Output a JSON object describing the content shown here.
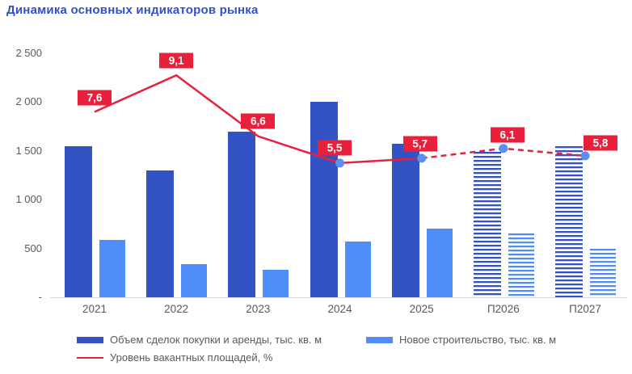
{
  "title": "Динамика основных индикаторов рынка",
  "colors": {
    "title": "#3350c6",
    "dark_blue": "#3352c4",
    "light_blue": "#4f8df9",
    "red": "#e8203c",
    "marker_blue": "#5a8ff0",
    "axis_text": "#595959",
    "axis_line": "#d9d9d9"
  },
  "legend": {
    "items": [
      {
        "label": "Объем сделок покупки и аренды, тыс. кв. м",
        "swatch": "dark-blue-bar"
      },
      {
        "label": "Новое строительство, тыс. кв. м",
        "swatch": "light-blue-bar"
      },
      {
        "label": "Уровень вакантных площадей, %",
        "swatch": "red-line"
      }
    ]
  },
  "chart_data": {
    "type": "bar",
    "subtype": "combo-bar-line",
    "title": "Динамика основных индикаторов рынка",
    "categories": [
      "2021",
      "2022",
      "2023",
      "2024",
      "2025",
      "П2026",
      "П2027"
    ],
    "series": [
      {
        "name": "Объем сделок покупки и аренды, тыс. кв. м",
        "type": "bar",
        "axis": "left",
        "values": [
          1550,
          1300,
          1700,
          2000,
          1570,
          1490,
          1550
        ],
        "forecast_from_index": 5
      },
      {
        "name": "Новое строительство, тыс. кв. м",
        "type": "bar",
        "axis": "left",
        "values": [
          590,
          340,
          280,
          570,
          700,
          655,
          500
        ],
        "forecast_from_index": 5
      },
      {
        "name": "Уровень вакантных площадей, %",
        "type": "line",
        "axis": "right",
        "values": [
          7.6,
          9.1,
          6.6,
          5.5,
          5.7,
          6.1,
          5.8
        ],
        "point_labels": [
          "7,6",
          "9,1",
          "6,6",
          "5,5",
          "5,7",
          "6,1",
          "5,8"
        ],
        "dashed_from_index": 4,
        "markers_from_index": 3
      }
    ],
    "left_axis": {
      "min": 0,
      "max": 2500,
      "tick_values": [
        2500,
        2000,
        1500,
        1000,
        500,
        0
      ],
      "tick_labels": [
        "2 500",
        "2 000",
        "1 500",
        "1 000",
        "500",
        "-"
      ]
    },
    "right_axis": {
      "min": 0,
      "max": 10,
      "visible": false
    },
    "grid": false,
    "legend_position": "bottom"
  }
}
